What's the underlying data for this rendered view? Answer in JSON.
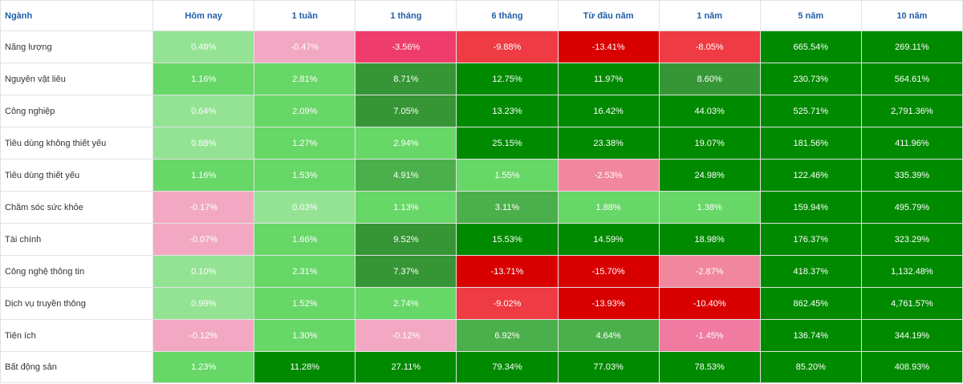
{
  "table": {
    "columns": [
      "Ngành",
      "Hôm nay",
      "1 tuần",
      "1 tháng",
      "6 tháng",
      "Từ đầu năm",
      "1 năm",
      "5 năm",
      "10 năm"
    ],
    "rows": [
      {
        "name": "Năng lượng",
        "values": [
          "0.48%",
          "-0.47%",
          "-3.56%",
          "-9.88%",
          "-13.41%",
          "-8.05%",
          "665.54%",
          "269.11%"
        ],
        "colors": [
          "#94e394",
          "#f2a8c2",
          "#ee3d6c",
          "#ef3b43",
          "#d90000",
          "#ef3b43",
          "#008a00",
          "#008a00"
        ]
      },
      {
        "name": "Nguyên vật liêu",
        "values": [
          "1.16%",
          "2.81%",
          "8.71%",
          "12.75%",
          "11.97%",
          "8.60%",
          "230.73%",
          "564.61%"
        ],
        "colors": [
          "#67d767",
          "#67d767",
          "#369636",
          "#008a00",
          "#008a00",
          "#369636",
          "#008a00",
          "#008a00"
        ]
      },
      {
        "name": "Công nghiệp",
        "values": [
          "0.64%",
          "2.09%",
          "7.05%",
          "13.23%",
          "16.42%",
          "44.03%",
          "525.71%",
          "2,791.36%"
        ],
        "colors": [
          "#94e394",
          "#67d767",
          "#369636",
          "#008a00",
          "#008a00",
          "#008a00",
          "#008a00",
          "#008a00"
        ]
      },
      {
        "name": "Tiêu dùng không thiết yếu",
        "values": [
          "0.88%",
          "1.27%",
          "2.94%",
          "25.15%",
          "23.38%",
          "19.07%",
          "181.56%",
          "411.96%"
        ],
        "colors": [
          "#94e394",
          "#67d767",
          "#67d767",
          "#008a00",
          "#008a00",
          "#008a00",
          "#008a00",
          "#008a00"
        ]
      },
      {
        "name": "Tiêu dùng thiết yếu",
        "values": [
          "1.16%",
          "1.53%",
          "4.91%",
          "1.55%",
          "-2.53%",
          "24.98%",
          "122.46%",
          "335.39%"
        ],
        "colors": [
          "#67d767",
          "#67d767",
          "#4bb04b",
          "#67d767",
          "#f0879f",
          "#008a00",
          "#008a00",
          "#008a00"
        ]
      },
      {
        "name": "Chăm sóc sức khỏe",
        "values": [
          "-0.17%",
          "0.03%",
          "1.13%",
          "3.11%",
          "1.88%",
          "1.38%",
          "159.94%",
          "495.79%"
        ],
        "colors": [
          "#f2a8c2",
          "#94e394",
          "#67d767",
          "#4bb04b",
          "#67d767",
          "#67d767",
          "#008a00",
          "#008a00"
        ]
      },
      {
        "name": "Tài chính",
        "values": [
          "-0.07%",
          "1.66%",
          "9.52%",
          "15.53%",
          "14.59%",
          "18.98%",
          "176.37%",
          "323.29%"
        ],
        "colors": [
          "#f2a8c2",
          "#67d767",
          "#369636",
          "#008a00",
          "#008a00",
          "#008a00",
          "#008a00",
          "#008a00"
        ]
      },
      {
        "name": "Công nghệ thông tin",
        "values": [
          "0.10%",
          "2.31%",
          "7.37%",
          "-13.71%",
          "-15.70%",
          "-2.87%",
          "418.37%",
          "1,132.48%"
        ],
        "colors": [
          "#94e394",
          "#67d767",
          "#369636",
          "#d90000",
          "#d90000",
          "#f0879f",
          "#008a00",
          "#008a00"
        ]
      },
      {
        "name": "Dịch vụ truyền thông",
        "values": [
          "0.99%",
          "1.52%",
          "2.74%",
          "-9.02%",
          "-13.93%",
          "-10.40%",
          "862.45%",
          "4,761.57%"
        ],
        "colors": [
          "#94e394",
          "#67d767",
          "#67d767",
          "#ef3b43",
          "#d90000",
          "#d90000",
          "#008a00",
          "#008a00"
        ]
      },
      {
        "name": "Tiện ích",
        "values": [
          "-0.12%",
          "1.30%",
          "-0.12%",
          "6.92%",
          "4.64%",
          "-1.45%",
          "136.74%",
          "344.19%"
        ],
        "colors": [
          "#f2a8c2",
          "#67d767",
          "#f2a8c2",
          "#4bb04b",
          "#4bb04b",
          "#f07aa0",
          "#008a00",
          "#008a00"
        ]
      },
      {
        "name": "Bất động sản",
        "values": [
          "1.23%",
          "11.28%",
          "27.11%",
          "79.34%",
          "77.03%",
          "78.53%",
          "85.20%",
          "408.93%"
        ],
        "colors": [
          "#67d767",
          "#008a00",
          "#008a00",
          "#008a00",
          "#008a00",
          "#008a00",
          "#008a00",
          "#008a00"
        ]
      }
    ]
  }
}
